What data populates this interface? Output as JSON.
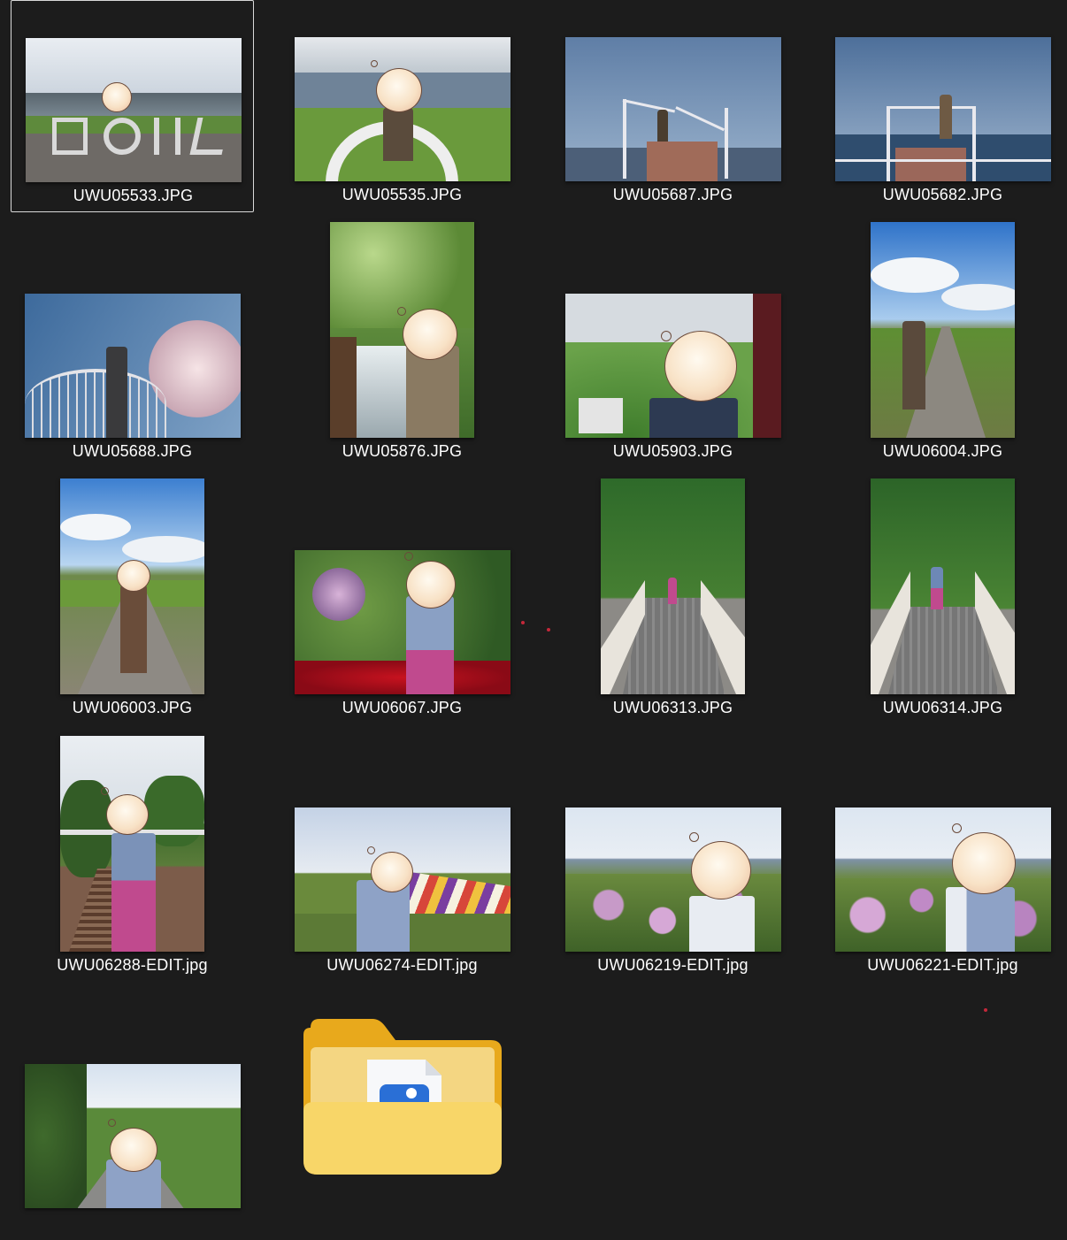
{
  "files": [
    {
      "name": "UWU05533.JPG",
      "selected": true
    },
    {
      "name": "UWU05535.JPG"
    },
    {
      "name": "UWU05687.JPG"
    },
    {
      "name": "UWU05682.JPG"
    },
    {
      "name": "UWU05688.JPG"
    },
    {
      "name": "UWU05876.JPG"
    },
    {
      "name": "UWU05903.JPG"
    },
    {
      "name": "UWU06004.JPG"
    },
    {
      "name": "UWU06003.JPG"
    },
    {
      "name": "UWU06067.JPG"
    },
    {
      "name": "UWU06313.JPG"
    },
    {
      "name": "UWU06314.JPG"
    },
    {
      "name": "UWU06288-EDIT.jpg"
    },
    {
      "name": "UWU06274-EDIT.jpg"
    },
    {
      "name": "UWU06219-EDIT.jpg"
    },
    {
      "name": "UWU06221-EDIT.jpg"
    }
  ],
  "colors": {
    "background": "#1c1c1c",
    "label": "#ffffff",
    "selection_border": "#d9d9d9",
    "folder": "#f5c542"
  }
}
